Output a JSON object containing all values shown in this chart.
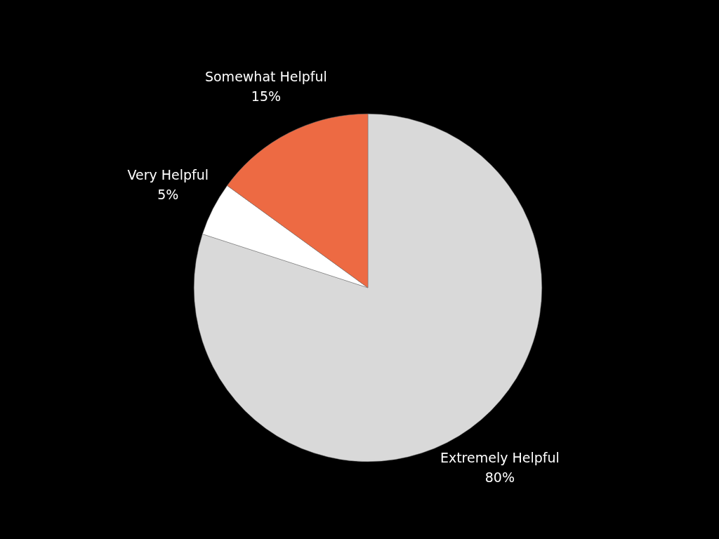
{
  "chart_data": {
    "type": "pie",
    "categories": [
      "Extremely Helpful",
      "Very Helpful",
      "Somewhat Helpful"
    ],
    "values": [
      80,
      5,
      15
    ],
    "colors": [
      "#d9d9d9",
      "#ffffff",
      "#ed6a43"
    ],
    "value_labels": [
      "80%",
      "5%",
      "15%"
    ],
    "legend": false
  }
}
